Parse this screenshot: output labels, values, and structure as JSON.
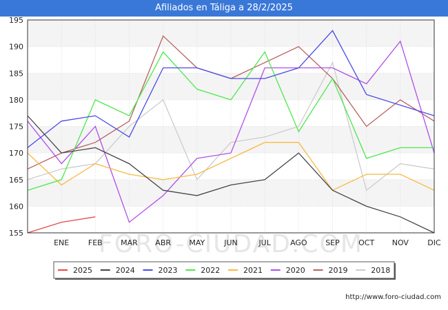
{
  "title": "Afiliados en Táliga a 28/2/2025",
  "watermark": "FORO-CIUDAD.COM",
  "source_url": "http://www.foro-ciudad.com",
  "chart_data": {
    "type": "line",
    "title": "Afiliados en Táliga a 28/2/2025",
    "xlabel": "",
    "ylabel": "",
    "categories": [
      "",
      "ENE",
      "FEB",
      "MAR",
      "ABR",
      "MAY",
      "JUN",
      "JUL",
      "AGO",
      "SEP",
      "OCT",
      "NOV",
      "DIC"
    ],
    "ylim": [
      155,
      195
    ],
    "yticks": [
      155,
      160,
      165,
      170,
      175,
      180,
      185,
      190,
      195
    ],
    "grid": "horizontal bands",
    "legend_position": "bottom",
    "series": [
      {
        "name": "2025",
        "color": "#e8474a",
        "values": [
          155,
          157,
          158,
          null,
          null,
          null,
          null,
          null,
          null,
          null,
          null,
          null,
          null
        ]
      },
      {
        "name": "2024",
        "color": "#444444",
        "values": [
          177,
          170,
          171,
          168,
          163,
          162,
          164,
          165,
          170,
          163,
          160,
          158,
          155
        ]
      },
      {
        "name": "2023",
        "color": "#4a4ae8",
        "values": [
          171,
          176,
          177,
          173,
          186,
          186,
          184,
          184,
          186,
          193,
          181,
          179,
          177
        ]
      },
      {
        "name": "2022",
        "color": "#4de84d",
        "values": [
          163,
          165,
          180,
          177,
          189,
          182,
          180,
          189,
          174,
          184,
          169,
          171,
          171
        ]
      },
      {
        "name": "2021",
        "color": "#f7b944",
        "values": [
          170,
          164,
          168,
          166,
          165,
          166,
          169,
          172,
          172,
          163,
          166,
          166,
          163
        ]
      },
      {
        "name": "2020",
        "color": "#b04ee8",
        "values": [
          176,
          168,
          175,
          157,
          162,
          169,
          170,
          186,
          186,
          186,
          183,
          191,
          170
        ]
      },
      {
        "name": "2019",
        "color": "#b86060",
        "values": [
          167,
          170,
          172,
          176,
          192,
          186,
          184,
          187,
          190,
          184,
          175,
          180,
          176
        ]
      },
      {
        "name": "2018",
        "color": "#cccccc",
        "values": [
          165,
          167,
          168,
          175,
          180,
          165,
          172,
          173,
          175,
          187,
          163,
          168,
          167
        ]
      }
    ]
  }
}
